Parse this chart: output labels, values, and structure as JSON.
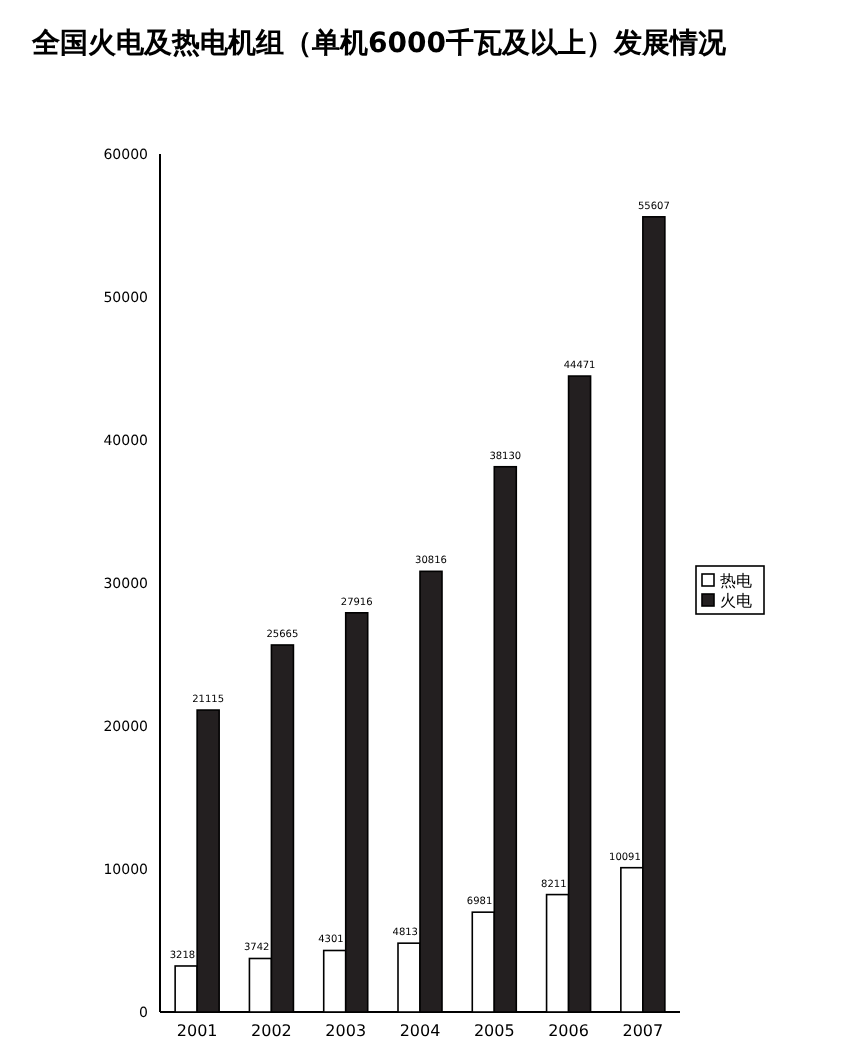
{
  "chart_data": {
    "type": "bar",
    "title": "全国火电及热电机组（单机6000千瓦及以上）发展情况",
    "categories": [
      "2001",
      "2002",
      "2003",
      "2004",
      "2005",
      "2006",
      "2007"
    ],
    "series": [
      {
        "name": "热电",
        "color": "#ffffff",
        "values": [
          3218,
          3742,
          4301,
          4813,
          6981,
          8211,
          10091
        ]
      },
      {
        "name": "火电",
        "color": "#231f20",
        "values": [
          21115,
          25665,
          27916,
          30816,
          38130,
          44471,
          55607
        ]
      }
    ],
    "ylim": [
      0,
      60000
    ],
    "yticks": [
      0,
      10000,
      20000,
      30000,
      40000,
      50000,
      60000
    ],
    "data_labels": true,
    "legend": "right",
    "grid": false
  }
}
